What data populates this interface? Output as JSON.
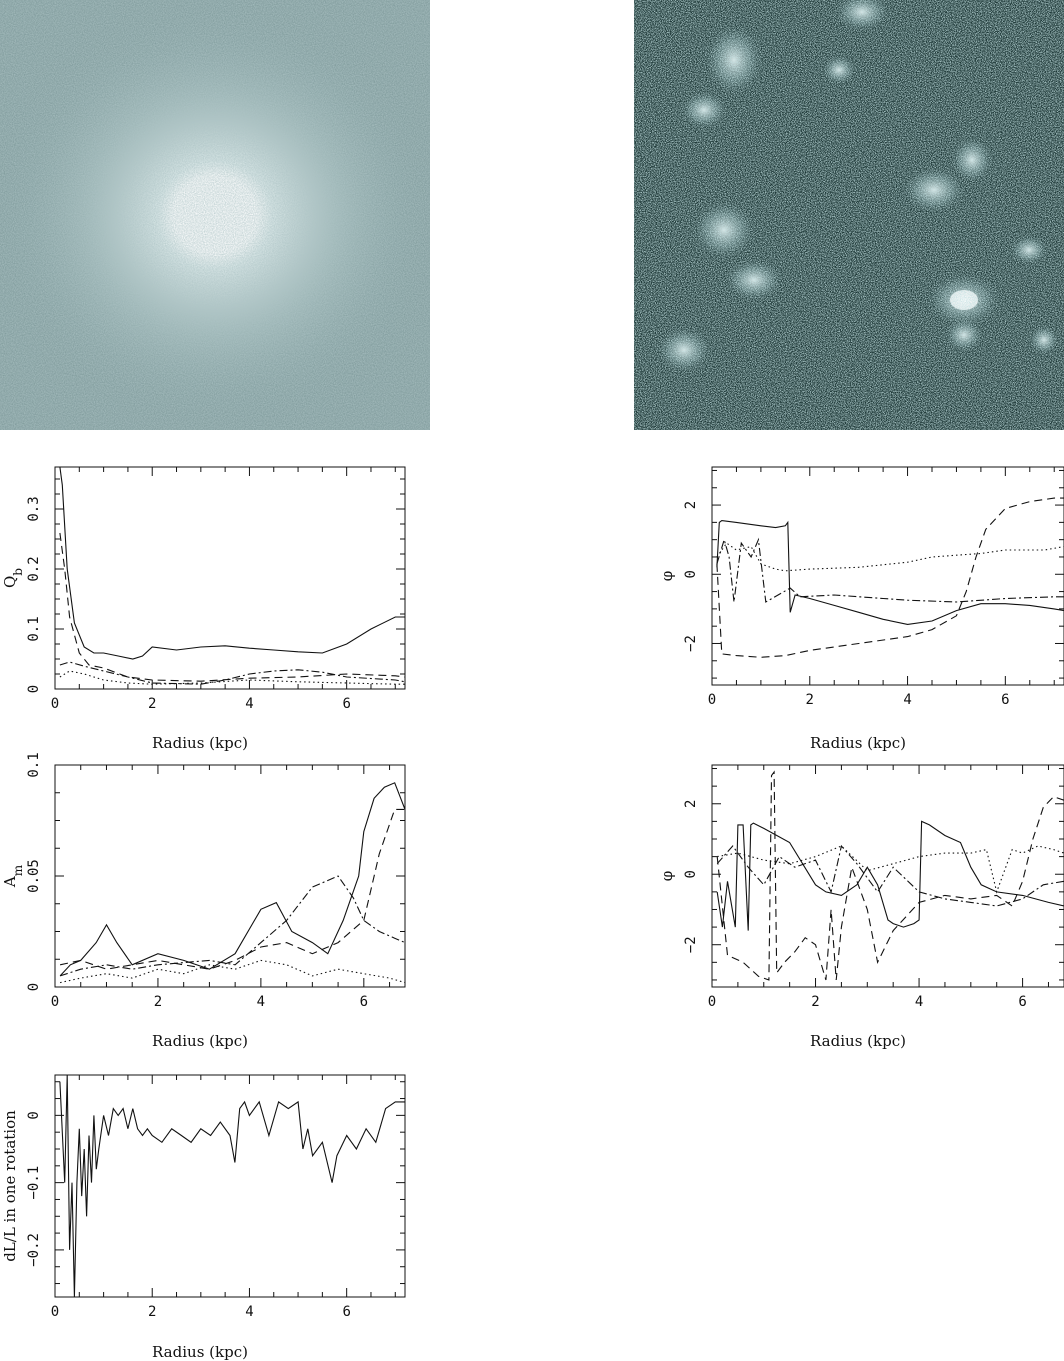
{
  "images": [
    {
      "name": "galaxy-image-left",
      "description": ""
    },
    {
      "name": "galaxy-image-right",
      "description": ""
    }
  ],
  "chart_data": [
    {
      "type": "line",
      "id": "qb",
      "ylabel": "Q",
      "ylabel_sub": "b",
      "xlabel": "Radius (kpc)",
      "xlim": [
        0,
        7.2
      ],
      "ylim": [
        0,
        0.37
      ],
      "xticks": [
        0,
        2,
        4,
        6
      ],
      "yticks": [
        0,
        0.1,
        0.2,
        0.3
      ],
      "series": [
        {
          "style": "solid",
          "x": [
            0.1,
            0.15,
            0.25,
            0.4,
            0.6,
            0.8,
            1.0,
            1.3,
            1.6,
            1.8,
            2.0,
            2.5,
            3.0,
            3.5,
            4.0,
            4.5,
            5.0,
            5.5,
            6.0,
            6.5,
            7.0,
            7.2
          ],
          "y": [
            0.37,
            0.34,
            0.2,
            0.11,
            0.07,
            0.06,
            0.06,
            0.055,
            0.05,
            0.055,
            0.07,
            0.065,
            0.07,
            0.072,
            0.068,
            0.065,
            0.062,
            0.06,
            0.075,
            0.1,
            0.12,
            0.12
          ]
        },
        {
          "style": "dashed",
          "x": [
            0.1,
            0.2,
            0.3,
            0.5,
            0.7,
            1.0,
            1.5,
            2.0,
            3.0,
            4.0,
            5.0,
            6.0,
            7.0,
            7.2
          ],
          "y": [
            0.26,
            0.2,
            0.12,
            0.06,
            0.04,
            0.035,
            0.02,
            0.015,
            0.013,
            0.018,
            0.02,
            0.025,
            0.022,
            0.02
          ]
        },
        {
          "style": "dashdot",
          "x": [
            0.1,
            0.3,
            0.6,
            1.0,
            1.5,
            2.0,
            3.0,
            3.5,
            4.0,
            4.5,
            5.0,
            5.5,
            6.0,
            7.0,
            7.2
          ],
          "y": [
            0.04,
            0.045,
            0.038,
            0.03,
            0.02,
            0.01,
            0.008,
            0.015,
            0.025,
            0.03,
            0.032,
            0.028,
            0.02,
            0.015,
            0.012
          ]
        },
        {
          "style": "dotted",
          "x": [
            0.1,
            0.3,
            0.6,
            1.0,
            1.5,
            2.0,
            3.0,
            4.0,
            5.0,
            6.0,
            7.0,
            7.2
          ],
          "y": [
            0.02,
            0.03,
            0.025,
            0.015,
            0.01,
            0.008,
            0.01,
            0.015,
            0.012,
            0.01,
            0.008,
            0.008
          ]
        }
      ]
    },
    {
      "type": "line",
      "id": "phi-top",
      "ylabel": "φ",
      "xlabel": "Radius (kpc)",
      "xlim": [
        0,
        7.2
      ],
      "ylim": [
        -3.2,
        3.1
      ],
      "xticks": [
        0,
        2,
        4,
        6
      ],
      "yticks": [
        -2,
        0,
        2
      ],
      "series": [
        {
          "style": "solid",
          "x": [
            0.1,
            0.15,
            0.2,
            0.5,
            1.0,
            1.3,
            1.5,
            1.55,
            1.6,
            1.7,
            2.0,
            2.5,
            3.0,
            3.5,
            4.0,
            4.5,
            5.0,
            5.5,
            6.0,
            6.5,
            7.0,
            7.2
          ],
          "y": [
            0.2,
            1.5,
            1.55,
            1.5,
            1.4,
            1.35,
            1.4,
            1.5,
            -1.1,
            -0.6,
            -0.7,
            -0.9,
            -1.1,
            -1.3,
            -1.45,
            -1.35,
            -1.05,
            -0.85,
            -0.85,
            -0.9,
            -1.0,
            -1.05
          ]
        },
        {
          "style": "dashed",
          "x": [
            0.1,
            0.2,
            0.5,
            1.0,
            1.5,
            2.0,
            3.0,
            4.0,
            4.5,
            5.0,
            5.2,
            5.4,
            5.6,
            6.0,
            6.5,
            7.0,
            7.2
          ],
          "y": [
            0.3,
            -2.3,
            -2.35,
            -2.4,
            -2.35,
            -2.2,
            -2.0,
            -1.8,
            -1.6,
            -1.2,
            -0.5,
            0.5,
            1.3,
            1.9,
            2.1,
            2.2,
            2.2
          ]
        },
        {
          "style": "dashdot",
          "x": [
            0.1,
            0.25,
            0.35,
            0.45,
            0.6,
            0.8,
            0.95,
            1.1,
            1.6,
            1.8,
            2.5,
            3.5,
            4.0,
            5.0,
            6.0,
            7.0,
            7.2
          ],
          "y": [
            0.3,
            1.0,
            0.5,
            -0.8,
            0.9,
            0.5,
            1.0,
            -0.8,
            -0.4,
            -0.65,
            -0.6,
            -0.7,
            -0.75,
            -0.8,
            -0.7,
            -0.65,
            -0.65
          ]
        },
        {
          "style": "dotted",
          "x": [
            0.1,
            0.3,
            0.5,
            0.8,
            1.0,
            1.3,
            1.5,
            2.0,
            3.0,
            4.0,
            4.5,
            5.0,
            5.5,
            6.0,
            6.8,
            7.2
          ],
          "y": [
            0.5,
            0.9,
            0.7,
            0.8,
            0.3,
            0.15,
            0.1,
            0.15,
            0.2,
            0.35,
            0.5,
            0.55,
            0.6,
            0.7,
            0.7,
            0.8
          ]
        }
      ]
    },
    {
      "type": "line",
      "id": "an",
      "ylabel": "A",
      "ylabel_sub": "m",
      "xlabel": "Radius (kpc)",
      "xlim": [
        0,
        6.8
      ],
      "ylim": [
        0,
        0.1
      ],
      "xticks": [
        0,
        2,
        4,
        6
      ],
      "yticks": [
        0,
        0.05,
        0.1
      ],
      "series": [
        {
          "style": "solid",
          "x": [
            0.1,
            0.3,
            0.5,
            0.8,
            1.0,
            1.2,
            1.5,
            2.0,
            2.5,
            3.0,
            3.5,
            4.0,
            4.3,
            4.6,
            5.0,
            5.3,
            5.6,
            5.9,
            6.0,
            6.2,
            6.4,
            6.6,
            6.8
          ],
          "y": [
            0.005,
            0.01,
            0.012,
            0.02,
            0.028,
            0.02,
            0.01,
            0.015,
            0.012,
            0.008,
            0.015,
            0.035,
            0.038,
            0.025,
            0.02,
            0.015,
            0.03,
            0.05,
            0.07,
            0.085,
            0.09,
            0.092,
            0.08
          ]
        },
        {
          "style": "dashed",
          "x": [
            0.1,
            0.5,
            1.0,
            1.5,
            2.0,
            2.5,
            3.0,
            3.5,
            4.0,
            4.5,
            5.0,
            5.5,
            6.0,
            6.3,
            6.6,
            6.8
          ],
          "y": [
            0.01,
            0.012,
            0.008,
            0.01,
            0.012,
            0.01,
            0.008,
            0.012,
            0.018,
            0.02,
            0.015,
            0.02,
            0.03,
            0.06,
            0.08,
            0.08
          ]
        },
        {
          "style": "dashdot",
          "x": [
            0.1,
            0.5,
            1.0,
            1.5,
            2.0,
            3.0,
            3.5,
            4.0,
            4.5,
            5.0,
            5.5,
            5.8,
            6.0,
            6.3,
            6.6,
            6.8
          ],
          "y": [
            0.005,
            0.008,
            0.01,
            0.008,
            0.01,
            0.012,
            0.01,
            0.02,
            0.03,
            0.045,
            0.05,
            0.04,
            0.03,
            0.025,
            0.022,
            0.02
          ]
        },
        {
          "style": "dotted",
          "x": [
            0.1,
            0.5,
            1.0,
            1.5,
            2.0,
            2.5,
            3.0,
            3.5,
            4.0,
            4.5,
            5.0,
            5.5,
            6.0,
            6.5,
            6.8
          ],
          "y": [
            0.002,
            0.004,
            0.006,
            0.004,
            0.008,
            0.006,
            0.01,
            0.008,
            0.012,
            0.01,
            0.005,
            0.008,
            0.006,
            0.004,
            0.002
          ]
        }
      ]
    },
    {
      "type": "line",
      "id": "phi-bottom",
      "ylabel": "φ",
      "xlabel": "Radius (kpc)",
      "xlim": [
        0,
        6.8
      ],
      "ylim": [
        -3.2,
        3.1
      ],
      "xticks": [
        0,
        2,
        4,
        6
      ],
      "yticks": [
        -2,
        0,
        2
      ],
      "series": [
        {
          "style": "solid",
          "x": [
            0.1,
            0.2,
            0.3,
            0.45,
            0.5,
            0.6,
            0.7,
            0.75,
            0.8,
            1.0,
            1.5,
            2.0,
            2.2,
            2.5,
            2.8,
            3.0,
            3.2,
            3.4,
            3.5,
            3.7,
            3.9,
            4.0,
            4.05,
            4.2,
            4.5,
            4.8,
            5.0,
            5.2,
            5.5,
            6.0,
            6.5,
            6.8
          ],
          "y": [
            -0.5,
            -1.5,
            -0.2,
            -1.5,
            1.4,
            1.4,
            -1.6,
            1.4,
            1.45,
            1.3,
            0.9,
            -0.3,
            -0.5,
            -0.6,
            -0.3,
            0.2,
            -0.3,
            -1.3,
            -1.4,
            -1.5,
            -1.4,
            -1.3,
            1.5,
            1.4,
            1.1,
            0.9,
            0.2,
            -0.3,
            -0.5,
            -0.6,
            -0.8,
            -0.9
          ]
        },
        {
          "style": "dashed",
          "x": [
            0.1,
            0.3,
            0.6,
            0.9,
            1.1,
            1.15,
            1.2,
            1.25,
            1.4,
            1.6,
            1.8,
            2.0,
            2.2,
            2.3,
            2.4,
            2.5,
            2.7,
            3.0,
            3.2,
            3.5,
            4.0,
            4.5,
            5.0,
            5.5,
            5.8,
            6.0,
            6.2,
            6.4,
            6.6,
            6.8
          ],
          "y": [
            0.5,
            -2.3,
            -2.5,
            -2.9,
            -3.0,
            2.8,
            2.9,
            -2.8,
            -2.5,
            -2.2,
            -1.8,
            -2.0,
            -3.0,
            -1.0,
            -3.0,
            -1.5,
            0.2,
            -1.0,
            -2.5,
            -1.6,
            -0.8,
            -0.6,
            -0.7,
            -0.6,
            -0.9,
            -0.2,
            1.0,
            1.9,
            2.2,
            2.1
          ]
        },
        {
          "style": "dashdot",
          "x": [
            0.1,
            0.4,
            0.7,
            1.0,
            1.3,
            1.6,
            2.0,
            2.3,
            2.5,
            2.8,
            3.2,
            3.5,
            4.0,
            4.5,
            5.0,
            5.5,
            6.0,
            6.4,
            6.8
          ],
          "y": [
            0.3,
            0.8,
            0.2,
            -0.3,
            0.5,
            0.2,
            0.4,
            -0.5,
            0.8,
            0.3,
            -0.5,
            0.2,
            -0.5,
            -0.7,
            -0.8,
            -0.9,
            -0.7,
            -0.3,
            -0.2
          ]
        },
        {
          "style": "dotted",
          "x": [
            0.1,
            0.5,
            1.0,
            1.5,
            2.0,
            2.5,
            3.0,
            3.5,
            4.0,
            4.5,
            5.0,
            5.3,
            5.5,
            5.8,
            6.0,
            6.3,
            6.6,
            6.8
          ],
          "y": [
            0.5,
            0.6,
            0.4,
            0.3,
            0.5,
            0.8,
            0.1,
            0.3,
            0.5,
            0.6,
            0.6,
            0.7,
            -0.5,
            0.7,
            0.6,
            0.8,
            0.7,
            0.6
          ]
        }
      ]
    },
    {
      "type": "line",
      "id": "dl",
      "ylabel": "dL/L in one rotation",
      "xlabel": "Radius (kpc)",
      "xlim": [
        0,
        7.2
      ],
      "ylim": [
        -0.27,
        0.06
      ],
      "xticks": [
        0,
        2,
        4,
        6
      ],
      "yticks": [
        -0.2,
        -0.1,
        0
      ],
      "series": [
        {
          "style": "solid",
          "x": [
            0.1,
            0.2,
            0.25,
            0.3,
            0.35,
            0.4,
            0.45,
            0.5,
            0.55,
            0.6,
            0.65,
            0.7,
            0.75,
            0.8,
            0.85,
            0.9,
            1.0,
            1.1,
            1.2,
            1.3,
            1.4,
            1.5,
            1.6,
            1.7,
            1.8,
            1.9,
            2.0,
            2.2,
            2.4,
            2.6,
            2.8,
            3.0,
            3.2,
            3.4,
            3.6,
            3.7,
            3.8,
            3.9,
            4.0,
            4.2,
            4.4,
            4.6,
            4.8,
            5.0,
            5.1,
            5.2,
            5.3,
            5.5,
            5.7,
            5.8,
            6.0,
            6.2,
            6.4,
            6.6,
            6.8,
            7.0,
            7.2
          ],
          "y": [
            0.05,
            -0.1,
            0.06,
            -0.2,
            -0.1,
            -0.27,
            -0.1,
            -0.02,
            -0.12,
            -0.05,
            -0.15,
            -0.03,
            -0.1,
            0.0,
            -0.08,
            -0.05,
            0.0,
            -0.03,
            0.01,
            0.0,
            0.01,
            -0.02,
            0.01,
            -0.02,
            -0.03,
            -0.02,
            -0.03,
            -0.04,
            -0.02,
            -0.03,
            -0.04,
            -0.02,
            -0.03,
            -0.01,
            -0.03,
            -0.07,
            0.01,
            0.02,
            0.0,
            0.02,
            -0.03,
            0.02,
            0.01,
            0.02,
            -0.05,
            -0.02,
            -0.06,
            -0.04,
            -0.1,
            -0.06,
            -0.03,
            -0.05,
            -0.02,
            -0.04,
            0.01,
            0.02,
            0.02
          ]
        }
      ]
    }
  ]
}
